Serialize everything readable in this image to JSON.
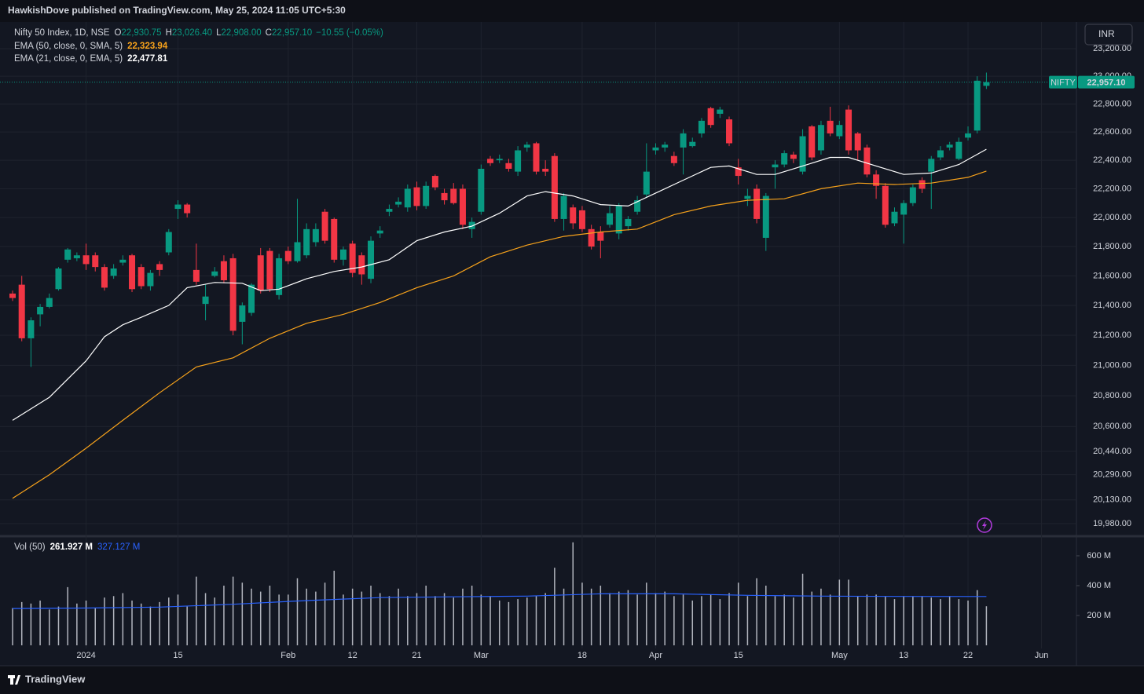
{
  "header": {
    "published": "HawkishDove published on TradingView.com, May 25, 2024 11:05 UTC+5:30"
  },
  "currency": "INR",
  "footer": {
    "brand": "TradingView"
  },
  "chart_data": [
    {
      "type": "candlestick",
      "legend": {
        "symbol": "Nifty 50 Index, 1D, NSE",
        "ohlc": [
          {
            "key": "O",
            "text": "22,930.75"
          },
          {
            "key": "H",
            "text": "23,026.40"
          },
          {
            "key": "L",
            "text": "22,908.00"
          },
          {
            "key": "C",
            "text": "22,957.10"
          }
        ],
        "change": "−10.55 (−0.05%)"
      },
      "up_color": "#089981",
      "down_color": "#f23645",
      "log": true,
      "grid": true,
      "xlim": [
        -1.37,
        115.8
      ],
      "xticks": [
        {
          "value": 8,
          "label": "2024"
        },
        {
          "value": 18,
          "label": "15"
        },
        {
          "value": 30,
          "label": "Feb"
        },
        {
          "value": 37,
          "label": "12"
        },
        {
          "value": 44,
          "label": "21"
        },
        {
          "value": 51,
          "label": "Mar"
        },
        {
          "value": 62,
          "label": "18"
        },
        {
          "value": 70,
          "label": "Apr"
        },
        {
          "value": 79,
          "label": "15"
        },
        {
          "value": 90,
          "label": "May"
        },
        {
          "value": 97,
          "label": "13"
        },
        {
          "value": 104,
          "label": "22"
        },
        {
          "value": 112,
          "label": "Jun"
        }
      ],
      "ylim": [
        19916,
        23396
      ],
      "yticks": [
        {
          "value": 23200,
          "label": "23,200.00"
        },
        {
          "value": 23000,
          "label": "23,000.00"
        },
        {
          "value": 22800,
          "label": "22,800.00"
        },
        {
          "value": 22600,
          "label": "22,600.00"
        },
        {
          "value": 22400,
          "label": "22,400.00"
        },
        {
          "value": 22200,
          "label": "22,200.00"
        },
        {
          "value": 22000,
          "label": "22,000.00"
        },
        {
          "value": 21800,
          "label": "21,800.00"
        },
        {
          "value": 21600,
          "label": "21,600.00"
        },
        {
          "value": 21400,
          "label": "21,400.00"
        },
        {
          "value": 21200,
          "label": "21,200.00"
        },
        {
          "value": 21000,
          "label": "21,000.00"
        },
        {
          "value": 20800,
          "label": "20,800.00"
        },
        {
          "value": 20600,
          "label": "20,600.00"
        },
        {
          "value": 20440,
          "label": "20,440.00"
        },
        {
          "value": 20290,
          "label": "20,290.00"
        },
        {
          "value": 20130,
          "label": "20,130.00"
        },
        {
          "value": 19980,
          "label": "19,980.00"
        }
      ],
      "open": [
        21480,
        21540,
        21180,
        21340,
        21390,
        21510,
        21710,
        21720,
        21740,
        21740,
        21660,
        21600,
        21690,
        21740,
        21660,
        21530,
        21680,
        21760,
        22060,
        22090,
        21640,
        21410,
        21600,
        21700,
        21720,
        21290,
        21350,
        21740,
        21770,
        21470,
        21770,
        21700,
        21740,
        21830,
        22040,
        21990,
        21710,
        21820,
        21740,
        21580,
        21890,
        22040,
        22090,
        22070,
        22210,
        22080,
        22290,
        22170,
        22200,
        22200,
        21920,
        22040,
        22410,
        22400,
        22380,
        22320,
        22490,
        22520,
        22340,
        22430,
        21990,
        22070,
        22050,
        21920,
        21900,
        21950,
        21890,
        21940,
        22040,
        22160,
        22470,
        22490,
        22430,
        22490,
        22500,
        22590,
        22770,
        22730,
        22690,
        22350,
        22130,
        22200,
        21860,
        22350,
        22370,
        22440,
        22320,
        22640,
        22470,
        22680,
        22570,
        22760,
        22590,
        22490,
        22300,
        22220,
        21960,
        22020,
        22100,
        22260,
        22320,
        22420,
        22490,
        22410,
        22560,
        22610,
        22930.75
      ],
      "high": [
        21500,
        21600,
        21320,
        21410,
        21480,
        21660,
        21790,
        21760,
        21820,
        21760,
        21680,
        21680,
        21740,
        21750,
        21680,
        21640,
        21700,
        21920,
        22120,
        22100,
        21820,
        21540,
        21660,
        21740,
        21750,
        21420,
        21550,
        21790,
        21790,
        21750,
        21800,
        22130,
        21960,
        21960,
        22060,
        22000,
        21800,
        21840,
        21760,
        21870,
        21940,
        22090,
        22140,
        22230,
        22250,
        22250,
        22300,
        22200,
        22240,
        22230,
        22000,
        22370,
        22430,
        22440,
        22410,
        22500,
        22530,
        22530,
        22400,
        22450,
        22170,
        22090,
        22080,
        21950,
        21940,
        22080,
        22100,
        22010,
        22150,
        22520,
        22520,
        22530,
        22460,
        22620,
        22560,
        22700,
        22780,
        22780,
        22710,
        22410,
        22200,
        22230,
        22170,
        22400,
        22470,
        22460,
        22620,
        22650,
        22680,
        22780,
        22680,
        22790,
        22600,
        22510,
        22330,
        22240,
        22070,
        22120,
        22230,
        22280,
        22430,
        22500,
        22530,
        22560,
        22640,
        23000,
        23026.4
      ],
      "low": [
        21430,
        21160,
        20990,
        21260,
        21380,
        21500,
        21690,
        21700,
        21640,
        21630,
        21500,
        21580,
        21670,
        21490,
        21510,
        21500,
        21600,
        21740,
        21990,
        22000,
        21540,
        21300,
        21590,
        21550,
        21200,
        21140,
        21330,
        21480,
        21490,
        21440,
        21680,
        21690,
        21720,
        21800,
        21820,
        21690,
        21670,
        21590,
        21540,
        21550,
        21860,
        22010,
        22070,
        22040,
        22050,
        22060,
        22190,
        22090,
        22090,
        21920,
        21860,
        22020,
        22360,
        22380,
        22320,
        22290,
        22460,
        22300,
        22290,
        21970,
        21910,
        21920,
        21900,
        21780,
        21720,
        21930,
        21850,
        21910,
        22020,
        22140,
        22440,
        22460,
        22360,
        22300,
        22490,
        22560,
        22630,
        22700,
        22500,
        22230,
        22080,
        21960,
        21770,
        22200,
        22350,
        22380,
        22300,
        22400,
        22440,
        22570,
        22550,
        22440,
        22400,
        22280,
        22130,
        21930,
        21940,
        21820,
        22080,
        22170,
        22060,
        22400,
        22470,
        22400,
        22540,
        22590,
        22908
      ],
      "close": [
        21450,
        21180,
        21300,
        21390,
        21450,
        21650,
        21780,
        21740,
        21680,
        21660,
        21520,
        21650,
        21710,
        21510,
        21530,
        21620,
        21640,
        21900,
        22090,
        22030,
        21560,
        21460,
        21630,
        21570,
        21230,
        21400,
        21540,
        21500,
        21510,
        21720,
        21700,
        21830,
        21920,
        21920,
        21840,
        21710,
        21780,
        21620,
        21610,
        21840,
        21910,
        22060,
        22110,
        22200,
        22080,
        22220,
        22210,
        22120,
        22100,
        21950,
        21970,
        22340,
        22380,
        22410,
        22340,
        22470,
        22510,
        22320,
        22320,
        21990,
        22150,
        21960,
        21920,
        21800,
        21840,
        22030,
        22080,
        21990,
        22120,
        22320,
        22490,
        22510,
        22380,
        22590,
        22530,
        22680,
        22650,
        22760,
        22520,
        22290,
        22150,
        21990,
        22150,
        22370,
        22450,
        22410,
        22570,
        22420,
        22650,
        22590,
        22650,
        22470,
        22470,
        22300,
        22220,
        21950,
        22040,
        22100,
        22210,
        22200,
        22410,
        22470,
        22510,
        22530,
        22590,
        22967.65,
        22957.1
      ],
      "last_label": {
        "name": "NIFTY",
        "text": "22,957.10"
      },
      "lines": [
        {
          "name": "EMA (50, close, 0, SMA, 5)",
          "color": "#f7a21b",
          "value_label": "22,323.94",
          "x": [
            0,
            4,
            8,
            12,
            16,
            20,
            24,
            28,
            32,
            36,
            40,
            44,
            48,
            52,
            56,
            60,
            64,
            68,
            72,
            76,
            80,
            84,
            88,
            92,
            96,
            100,
            104,
            106
          ],
          "values": [
            20140,
            20290,
            20460,
            20640,
            20820,
            20990,
            21050,
            21180,
            21280,
            21340,
            21420,
            21520,
            21600,
            21730,
            21810,
            21870,
            21900,
            21920,
            22020,
            22080,
            22120,
            22130,
            22200,
            22240,
            22230,
            22240,
            22280,
            22323.94
          ]
        },
        {
          "name": "EMA (21, close, 0, EMA, 5)",
          "color": "#ffffff",
          "value_label": "22,477.81",
          "x": [
            0,
            4,
            8,
            10,
            12,
            14,
            17,
            19,
            22,
            25,
            27,
            29,
            32,
            35,
            38,
            41,
            44,
            47,
            50,
            53,
            56,
            58,
            61,
            64,
            67,
            70,
            73,
            76,
            78,
            81,
            83,
            86,
            89,
            91,
            94,
            97,
            100,
            103,
            106
          ],
          "values": [
            20640,
            20790,
            21030,
            21190,
            21270,
            21320,
            21400,
            21520,
            21555,
            21550,
            21500,
            21510,
            21580,
            21630,
            21660,
            21710,
            21840,
            21900,
            21940,
            22030,
            22150,
            22180,
            22150,
            22090,
            22080,
            22170,
            22260,
            22350,
            22360,
            22300,
            22300,
            22360,
            22420,
            22420,
            22360,
            22300,
            22310,
            22370,
            22477.81
          ]
        }
      ]
    },
    {
      "type": "volume",
      "title": "Vol (50)",
      "color": "#b2b5be",
      "value_label": "261.927 M",
      "ylim": [
        0,
        705
      ],
      "yticks": [
        {
          "value": 600,
          "label": "600 M"
        },
        {
          "value": 400,
          "label": "400 M"
        },
        {
          "value": 200,
          "label": "200 M"
        }
      ],
      "values": [
        250,
        290,
        280,
        300,
        240,
        260,
        390,
        280,
        300,
        250,
        320,
        330,
        350,
        300,
        280,
        260,
        290,
        320,
        340,
        260,
        460,
        350,
        320,
        400,
        460,
        420,
        380,
        360,
        400,
        340,
        340,
        450,
        380,
        360,
        420,
        500,
        340,
        380,
        360,
        400,
        350,
        330,
        380,
        330,
        350,
        400,
        330,
        350,
        320,
        380,
        400,
        340,
        330,
        300,
        290,
        310,
        320,
        330,
        350,
        520,
        380,
        690,
        420,
        380,
        400,
        350,
        360,
        370,
        340,
        420,
        350,
        360,
        330,
        340,
        300,
        330,
        340,
        310,
        350,
        420,
        330,
        450,
        400,
        330,
        340,
        320,
        480,
        360,
        380,
        340,
        440,
        440,
        330,
        340,
        340,
        330,
        310,
        330,
        330,
        330,
        320,
        310,
        330,
        310,
        300,
        370,
        261.927
      ],
      "ma": {
        "color": "#2962ff",
        "value_label": "327.127 M",
        "x": [
          0,
          8,
          16,
          24,
          32,
          40,
          48,
          56,
          64,
          72,
          80,
          88,
          96,
          106
        ],
        "values": [
          247,
          250,
          256,
          275,
          300,
          320,
          325,
          330,
          345,
          345,
          335,
          330,
          328,
          327.127
        ]
      }
    }
  ]
}
